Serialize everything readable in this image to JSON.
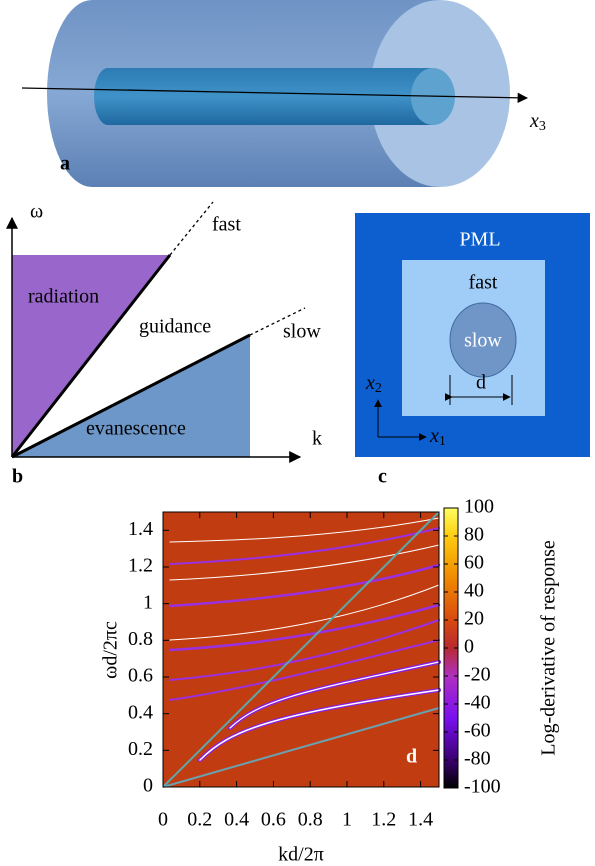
{
  "panel_a": {
    "label": "a",
    "axis": {
      "base": "x",
      "sub": "3"
    }
  },
  "panel_b": {
    "label": "b",
    "y_axis": "ω",
    "x_axis": "k",
    "fast": "fast",
    "slow": "slow",
    "radiation": "radiation",
    "guidance": "guidance",
    "evanescence": "evanescence"
  },
  "panel_c": {
    "label": "c",
    "outer": "PML",
    "middle": "fast",
    "core": "slow",
    "width": "d",
    "axis_vertical": {
      "base": "x",
      "sub": "2"
    },
    "axis_horizontal": {
      "base": "x",
      "sub": "1"
    }
  },
  "chart_data": {
    "type": "heatmap",
    "panel_label": "d",
    "xlabel": "kd/2π",
    "ylabel": "ωd/2πc",
    "xlim": [
      0,
      1.5
    ],
    "ylim": [
      0,
      1.5
    ],
    "xticks": [
      0,
      0.2,
      0.4,
      0.6,
      0.8,
      1,
      1.2,
      1.4
    ],
    "yticks": [
      0,
      0.2,
      0.4,
      0.6,
      0.8,
      1,
      1.2,
      1.4
    ],
    "colorbar_label": "Log-derivative of response",
    "clim": [
      -100,
      100
    ],
    "cticks": [
      -100,
      -80,
      -60,
      -40,
      -20,
      0,
      20,
      40,
      60,
      80,
      100
    ]
  }
}
